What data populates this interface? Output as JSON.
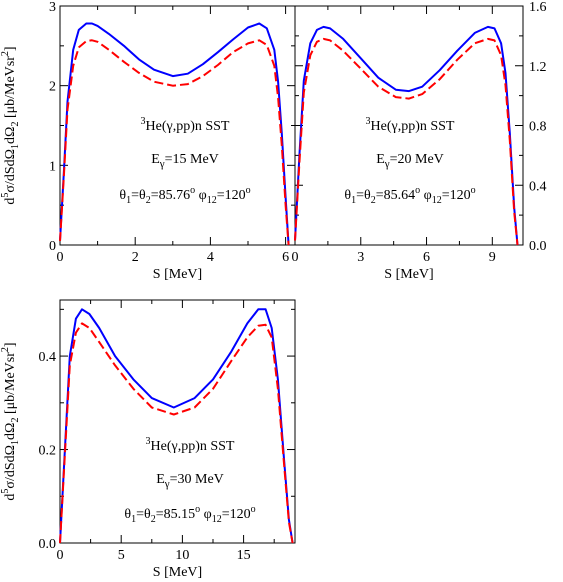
{
  "chart_data": [
    {
      "type": "line",
      "xlabel": "S [MeV]",
      "ylabel": "d5σ/dSdΩ1dΩ2 [μb/MeVsr2]",
      "xlim": [
        0,
        6.25
      ],
      "ylim": [
        0,
        3
      ],
      "xticks": [
        0,
        2,
        4,
        6
      ],
      "yticks": [
        0,
        1,
        2,
        3
      ],
      "annotation": {
        "reaction": "3He(γ,pp)n   SST",
        "energy": "Eγ=15 MeV",
        "angles": "θ1=θ2=85.76o φ12=120o"
      },
      "series": [
        {
          "style": "solid",
          "color": "#0000ff",
          "x": [
            0,
            0.1,
            0.2,
            0.35,
            0.5,
            0.7,
            0.85,
            1.0,
            1.3,
            1.7,
            2.1,
            2.5,
            3.0,
            3.4,
            3.8,
            4.2,
            4.6,
            5.0,
            5.3,
            5.5,
            5.7,
            5.8,
            5.9,
            6.0,
            6.08
          ],
          "y": [
            0.05,
            0.9,
            1.8,
            2.45,
            2.7,
            2.78,
            2.78,
            2.75,
            2.65,
            2.5,
            2.33,
            2.2,
            2.12,
            2.15,
            2.27,
            2.42,
            2.58,
            2.73,
            2.78,
            2.72,
            2.45,
            2.05,
            1.4,
            0.6,
            0.0
          ]
        },
        {
          "style": "dashed",
          "color": "#ff0000",
          "x": [
            0,
            0.1,
            0.2,
            0.35,
            0.5,
            0.7,
            0.85,
            1.0,
            1.3,
            1.7,
            2.1,
            2.5,
            3.0,
            3.4,
            3.8,
            4.2,
            4.6,
            5.0,
            5.3,
            5.5,
            5.7,
            5.8,
            5.9,
            6.0,
            6.08
          ],
          "y": [
            0.05,
            0.85,
            1.7,
            2.25,
            2.48,
            2.56,
            2.57,
            2.55,
            2.45,
            2.3,
            2.16,
            2.05,
            2.0,
            2.02,
            2.12,
            2.26,
            2.42,
            2.53,
            2.57,
            2.51,
            2.25,
            1.85,
            1.25,
            0.5,
            0.0
          ]
        }
      ]
    },
    {
      "type": "line",
      "xlabel": "S [MeV]",
      "ylabel": "",
      "xlim": [
        0,
        10.4
      ],
      "ylim": [
        0,
        1.6
      ],
      "xticks": [
        0,
        3,
        6,
        9
      ],
      "yticks": [
        0.0,
        0.4,
        0.8,
        1.2,
        1.6
      ],
      "annotation": {
        "reaction": "3He(γ,pp)n   SST",
        "energy": "Eγ=20 MeV",
        "angles": "θ1=θ2=85.64o φ12=120o"
      },
      "series": [
        {
          "style": "solid",
          "color": "#0000ff",
          "x": [
            0,
            0.2,
            0.4,
            0.7,
            1.0,
            1.3,
            1.6,
            2.2,
            3.0,
            3.8,
            4.6,
            5.2,
            5.8,
            6.6,
            7.4,
            8.2,
            8.8,
            9.1,
            9.4,
            9.6,
            9.8,
            10.0,
            10.15
          ],
          "y": [
            0.03,
            0.6,
            1.1,
            1.35,
            1.44,
            1.46,
            1.45,
            1.38,
            1.25,
            1.12,
            1.04,
            1.03,
            1.06,
            1.17,
            1.3,
            1.42,
            1.46,
            1.45,
            1.35,
            1.15,
            0.75,
            0.25,
            0.0
          ]
        },
        {
          "style": "dashed",
          "color": "#ff0000",
          "x": [
            0,
            0.2,
            0.4,
            0.7,
            1.0,
            1.3,
            1.6,
            2.2,
            3.0,
            3.8,
            4.6,
            5.2,
            5.8,
            6.6,
            7.4,
            8.2,
            8.8,
            9.1,
            9.4,
            9.6,
            9.8,
            10.0,
            10.15
          ],
          "y": [
            0.03,
            0.55,
            1.02,
            1.27,
            1.36,
            1.38,
            1.37,
            1.3,
            1.18,
            1.06,
            0.99,
            0.98,
            1.01,
            1.11,
            1.24,
            1.35,
            1.38,
            1.37,
            1.27,
            1.07,
            0.7,
            0.22,
            0.0
          ]
        }
      ]
    },
    {
      "type": "line",
      "xlabel": "S [MeV]",
      "ylabel": "d5σ/dSdΩ1dΩ2 [μb/MeVsr2]",
      "xlim": [
        0,
        19.2
      ],
      "ylim": [
        0,
        0.52
      ],
      "xticks": [
        0,
        5,
        10,
        15
      ],
      "yticks": [
        0.0,
        0.2,
        0.4
      ],
      "annotation": {
        "reaction": "3He(γ,pp)n   SST",
        "energy": "Eγ=30 MeV",
        "angles": "θ1=θ2=85.15o φ12=120o"
      },
      "series": [
        {
          "style": "solid",
          "color": "#0000ff",
          "x": [
            0,
            0.4,
            0.8,
            1.3,
            1.8,
            2.4,
            3.2,
            4.5,
            6.0,
            7.5,
            9.3,
            11.0,
            12.5,
            14.0,
            15.3,
            16.2,
            16.8,
            17.3,
            17.8,
            18.3,
            18.7,
            19.0
          ],
          "y": [
            0.0,
            0.2,
            0.4,
            0.48,
            0.5,
            0.49,
            0.46,
            0.4,
            0.35,
            0.31,
            0.29,
            0.31,
            0.35,
            0.41,
            0.47,
            0.5,
            0.5,
            0.46,
            0.35,
            0.18,
            0.05,
            0.0
          ]
        },
        {
          "style": "dashed",
          "color": "#ff0000",
          "x": [
            0,
            0.4,
            0.8,
            1.3,
            1.8,
            2.4,
            3.2,
            4.5,
            6.0,
            7.5,
            9.3,
            11.0,
            12.5,
            14.0,
            15.3,
            16.2,
            16.8,
            17.3,
            17.8,
            18.3,
            18.7,
            19.0
          ],
          "y": [
            0.0,
            0.19,
            0.38,
            0.45,
            0.47,
            0.46,
            0.43,
            0.38,
            0.33,
            0.29,
            0.275,
            0.29,
            0.33,
            0.39,
            0.44,
            0.465,
            0.467,
            0.44,
            0.33,
            0.17,
            0.045,
            0.0
          ]
        }
      ]
    }
  ]
}
